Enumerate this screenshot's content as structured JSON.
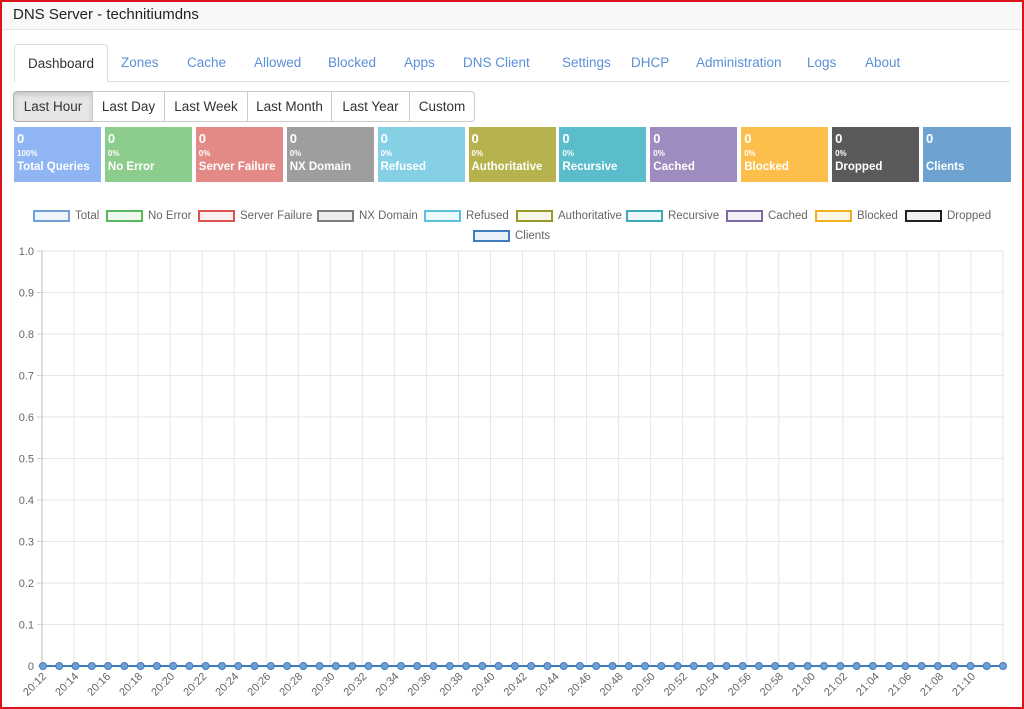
{
  "window": {
    "title": "DNS Server - technitiumdns"
  },
  "tabs": [
    {
      "label": "Dashboard",
      "active": true
    },
    {
      "label": "Zones"
    },
    {
      "label": "Cache"
    },
    {
      "label": "Allowed"
    },
    {
      "label": "Blocked"
    },
    {
      "label": "Apps"
    },
    {
      "label": "DNS Client"
    },
    {
      "label": "Settings"
    },
    {
      "label": "DHCP"
    },
    {
      "label": "Administration"
    },
    {
      "label": "Logs"
    },
    {
      "label": "About"
    }
  ],
  "ranges": [
    {
      "label": "Last Hour",
      "active": true
    },
    {
      "label": "Last Day"
    },
    {
      "label": "Last Week"
    },
    {
      "label": "Last Month"
    },
    {
      "label": "Last Year"
    },
    {
      "label": "Custom"
    }
  ],
  "stats": [
    {
      "value": "0",
      "percent": "100%",
      "label": "Total Queries",
      "color": "#8fb5f5"
    },
    {
      "value": "0",
      "percent": "0%",
      "label": "No Error",
      "color": "#8ccc8c"
    },
    {
      "value": "0",
      "percent": "0%",
      "label": "Server Failure",
      "color": "#e38a86"
    },
    {
      "value": "0",
      "percent": "0%",
      "label": "NX Domain",
      "color": "#9e9e9e"
    },
    {
      "value": "0",
      "percent": "0%",
      "label": "Refused",
      "color": "#86d0e6"
    },
    {
      "value": "0",
      "percent": "0%",
      "label": "Authoritative",
      "color": "#b6b34e"
    },
    {
      "value": "0",
      "percent": "0%",
      "label": "Recursive",
      "color": "#5bbccb"
    },
    {
      "value": "0",
      "percent": "0%",
      "label": "Cached",
      "color": "#9e8bbf"
    },
    {
      "value": "0",
      "percent": "0%",
      "label": "Blocked",
      "color": "#fcbf4c"
    },
    {
      "value": "0",
      "percent": "0%",
      "label": "Dropped",
      "color": "#5a5a5a"
    },
    {
      "value": "0",
      "percent": "",
      "label": "Clients",
      "color": "#6ea3d1"
    }
  ],
  "chart_data": {
    "type": "line",
    "x": [
      "20:12",
      "20:14",
      "20:16",
      "20:18",
      "20:20",
      "20:22",
      "20:24",
      "20:26",
      "20:28",
      "20:30",
      "20:32",
      "20:34",
      "20:36",
      "20:38",
      "20:40",
      "20:42",
      "20:44",
      "20:46",
      "20:48",
      "20:50",
      "20:52",
      "20:54",
      "20:56",
      "20:58",
      "21:00",
      "21:02",
      "21:04",
      "21:06",
      "21:08",
      "21:10"
    ],
    "points_per_series": 60,
    "ylim": [
      0,
      1.0
    ],
    "yticks": [
      "0",
      "0.1",
      "0.2",
      "0.3",
      "0.4",
      "0.5",
      "0.6",
      "0.7",
      "0.8",
      "0.9",
      "1.0"
    ],
    "grid": true,
    "legend_position": "top",
    "series": [
      {
        "name": "Total",
        "border": "#6f9fd6",
        "fill": "#eef4fc",
        "values_all": 0
      },
      {
        "name": "No Error",
        "border": "#5cb85c",
        "fill": "#f0f9f0",
        "values_all": 0
      },
      {
        "name": "Server Failure",
        "border": "#d9534f",
        "fill": "#fbeeee",
        "values_all": 0
      },
      {
        "name": "NX Domain",
        "border": "#7c7c7c",
        "fill": "#eeeeee",
        "values_all": 0
      },
      {
        "name": "Refused",
        "border": "#5bc0de",
        "fill": "#eef9fc",
        "values_all": 0
      },
      {
        "name": "Authoritative",
        "border": "#9a9a2a",
        "fill": "#f6f6e6",
        "values_all": 0
      },
      {
        "name": "Recursive",
        "border": "#3fa8b8",
        "fill": "#eaf6f8",
        "values_all": 0
      },
      {
        "name": "Cached",
        "border": "#7e6aa8",
        "fill": "#f3f0f8",
        "values_all": 0
      },
      {
        "name": "Blocked",
        "border": "#f0ad1e",
        "fill": "#fef7e8",
        "values_all": 0
      },
      {
        "name": "Dropped",
        "border": "#222222",
        "fill": "#f0f0f0",
        "values_all": 0
      },
      {
        "name": "Clients",
        "border": "#3e7bbf",
        "fill": "#e8f0f9",
        "values_all": 0
      }
    ]
  }
}
